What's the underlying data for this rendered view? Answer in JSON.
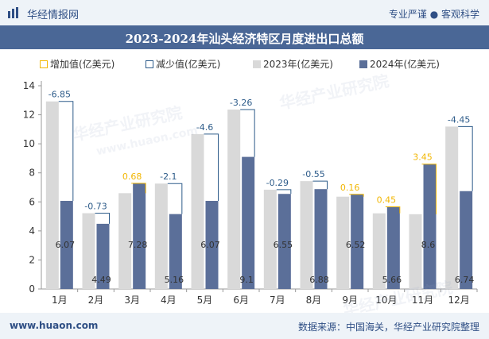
{
  "header": {
    "brand": "华经情报网",
    "tagline": "专业严谨 ● 客观科学"
  },
  "footer": {
    "website": "www.huaon.com",
    "source": "数据来源：中国海关，华经产业研究院整理"
  },
  "watermark": {
    "text": "华经产业研究院",
    "url": "www.huaon.com"
  },
  "colors": {
    "increase": "#f2b705",
    "decrease": "#2e5c8a",
    "y2023": "#d9d9d9",
    "y2024": "#5b6f99"
  },
  "chart_data": {
    "type": "bar",
    "title": "2023-2024年汕头经济特区月度进出口总额",
    "categories": [
      "1月",
      "2月",
      "3月",
      "4月",
      "5月",
      "6月",
      "7月",
      "8月",
      "9月",
      "10月",
      "11月",
      "12月"
    ],
    "series": [
      {
        "name": "2023年(亿美元)",
        "values": [
          12.92,
          5.22,
          6.6,
          7.26,
          10.67,
          12.36,
          6.84,
          7.43,
          6.36,
          5.21,
          5.15,
          11.19
        ]
      },
      {
        "name": "2024年(亿美元)",
        "values": [
          6.07,
          4.49,
          7.28,
          5.16,
          6.07,
          9.1,
          6.55,
          6.88,
          6.52,
          5.66,
          8.6,
          6.74
        ]
      }
    ],
    "change": [
      -6.85,
      -0.73,
      0.68,
      -2.1,
      -4.6,
      -3.26,
      -0.29,
      -0.55,
      0.16,
      0.45,
      3.45,
      -4.45
    ],
    "legend": [
      "增加值(亿美元)",
      "减少值(亿美元)",
      "2023年(亿美元)",
      "2024年(亿美元)"
    ],
    "legend_position": "top",
    "xlabel": "",
    "ylabel": "",
    "ylim": [
      0,
      14
    ],
    "yticks": [
      0,
      2,
      4,
      6,
      8,
      10,
      12,
      14
    ],
    "grid": false
  }
}
